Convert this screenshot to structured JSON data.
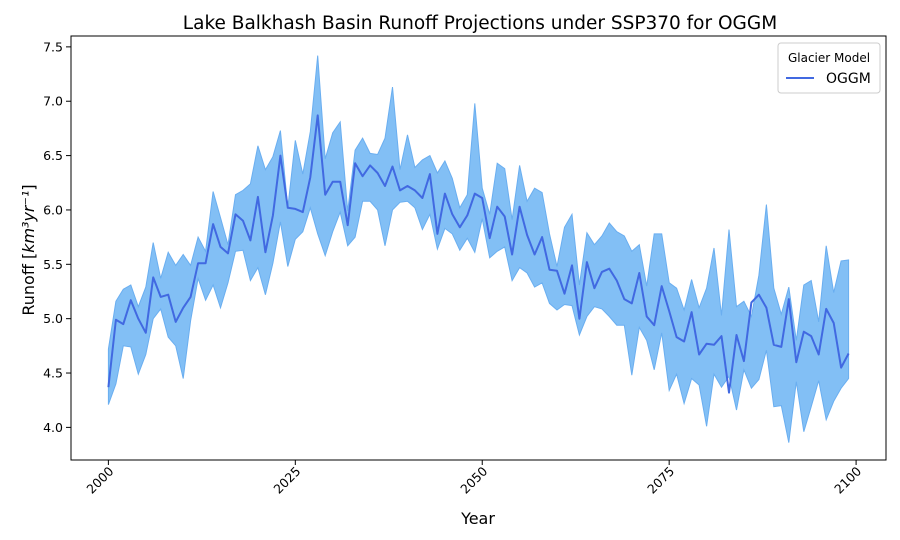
{
  "chart_data": {
    "type": "line",
    "title": "Lake Balkhash Basin Runoff Projections under SSP370 for OGGM",
    "xlabel": "Year",
    "ylabel": "Runoff [",
    "ylabel_unit": "km³yr⁻¹",
    "ylabel_suffix": "]",
    "xlim": [
      1995,
      2104
    ],
    "ylim": [
      3.7,
      7.6
    ],
    "xticks": [
      2000,
      2025,
      2050,
      2075,
      2100
    ],
    "xtick_labels": [
      "2000",
      "2025",
      "2050",
      "2075",
      "2100"
    ],
    "yticks": [
      4.0,
      4.5,
      5.0,
      5.5,
      6.0,
      6.5,
      7.0,
      7.5
    ],
    "ytick_labels": [
      "4.0",
      "4.5",
      "5.0",
      "5.5",
      "6.0",
      "6.5",
      "7.0",
      "7.5"
    ],
    "grid": false,
    "legend": {
      "title": "Glacier Model",
      "placement": "top-right",
      "entries": [
        "OGGM"
      ]
    },
    "colors": {
      "line": "#4169e1",
      "band": "#82bff5"
    },
    "x": [
      2000,
      2001,
      2002,
      2003,
      2004,
      2005,
      2006,
      2007,
      2008,
      2009,
      2010,
      2011,
      2012,
      2013,
      2014,
      2015,
      2016,
      2017,
      2018,
      2019,
      2020,
      2021,
      2022,
      2023,
      2024,
      2025,
      2026,
      2027,
      2028,
      2029,
      2030,
      2031,
      2032,
      2033,
      2034,
      2035,
      2036,
      2037,
      2038,
      2039,
      2040,
      2041,
      2042,
      2043,
      2044,
      2045,
      2046,
      2047,
      2048,
      2049,
      2050,
      2051,
      2052,
      2053,
      2054,
      2055,
      2056,
      2057,
      2058,
      2059,
      2060,
      2061,
      2062,
      2063,
      2064,
      2065,
      2066,
      2067,
      2068,
      2069,
      2070,
      2071,
      2072,
      2073,
      2074,
      2075,
      2076,
      2077,
      2078,
      2079,
      2080,
      2081,
      2082,
      2083,
      2084,
      2085,
      2086,
      2087,
      2088,
      2089,
      2090,
      2091,
      2092,
      2093,
      2094,
      2095,
      2096,
      2097,
      2098,
      2099
    ],
    "series": [
      {
        "name": "OGGM",
        "values": [
          4.37,
          4.99,
          4.95,
          5.17,
          5.0,
          4.87,
          5.38,
          5.2,
          5.22,
          4.97,
          5.1,
          5.2,
          5.51,
          5.51,
          5.87,
          5.66,
          5.6,
          5.96,
          5.9,
          5.72,
          6.12,
          5.61,
          5.95,
          6.5,
          6.02,
          6.01,
          5.98,
          6.3,
          6.87,
          6.14,
          6.26,
          6.26,
          5.86,
          6.43,
          6.31,
          6.41,
          6.34,
          6.22,
          6.4,
          6.18,
          6.22,
          6.18,
          6.11,
          6.33,
          5.78,
          6.15,
          5.96,
          5.84,
          5.95,
          6.15,
          6.11,
          5.74,
          6.03,
          5.94,
          5.59,
          6.03,
          5.77,
          5.59,
          5.75,
          5.45,
          5.44,
          5.23,
          5.49,
          5.0,
          5.52,
          5.28,
          5.43,
          5.46,
          5.35,
          5.18,
          5.14,
          5.42,
          5.02,
          4.94,
          5.3,
          5.07,
          4.83,
          4.79,
          5.06,
          4.67,
          4.77,
          4.76,
          4.84,
          4.32,
          4.85,
          4.61,
          5.15,
          5.22,
          5.1,
          4.76,
          4.74,
          5.18,
          4.6,
          4.88,
          4.84,
          4.67,
          5.09,
          4.96,
          4.55,
          4.68
        ]
      }
    ],
    "band": {
      "lower": [
        4.21,
        4.4,
        4.75,
        4.74,
        4.49,
        4.67,
        5.0,
        5.09,
        4.83,
        4.75,
        4.45,
        4.98,
        5.37,
        5.17,
        5.31,
        5.1,
        5.33,
        5.62,
        5.63,
        5.35,
        5.47,
        5.22,
        5.51,
        5.89,
        5.48,
        5.73,
        5.8,
        6.02,
        5.78,
        5.58,
        5.8,
        5.98,
        5.67,
        5.75,
        6.08,
        6.08,
        6.0,
        5.67,
        6.0,
        6.07,
        6.08,
        6.02,
        5.82,
        5.96,
        5.64,
        5.83,
        5.78,
        5.63,
        5.74,
        5.61,
        5.92,
        5.56,
        5.62,
        5.66,
        5.35,
        5.47,
        5.42,
        5.29,
        5.33,
        5.14,
        5.08,
        5.13,
        5.12,
        4.85,
        5.02,
        5.11,
        5.09,
        5.02,
        4.94,
        4.94,
        4.48,
        4.92,
        4.8,
        4.53,
        4.87,
        4.34,
        4.49,
        4.22,
        4.45,
        4.39,
        4.01,
        4.49,
        4.37,
        4.47,
        4.16,
        4.53,
        4.36,
        4.44,
        4.71,
        4.19,
        4.2,
        3.86,
        4.42,
        3.96,
        4.19,
        4.43,
        4.07,
        4.24,
        4.36,
        4.45
      ],
      "upper": [
        4.72,
        5.16,
        5.27,
        5.31,
        5.11,
        5.29,
        5.7,
        5.37,
        5.61,
        5.49,
        5.59,
        5.49,
        5.75,
        5.62,
        6.17,
        5.93,
        5.68,
        6.14,
        6.18,
        6.24,
        6.59,
        6.37,
        6.49,
        6.73,
        6.02,
        6.64,
        6.33,
        6.72,
        7.42,
        6.47,
        6.71,
        6.81,
        5.99,
        6.55,
        6.66,
        6.52,
        6.51,
        6.66,
        7.13,
        6.37,
        6.69,
        6.39,
        6.46,
        6.5,
        6.34,
        6.45,
        6.29,
        6.02,
        6.14,
        6.98,
        6.2,
        5.96,
        6.43,
        6.38,
        5.91,
        6.41,
        6.08,
        6.2,
        6.16,
        5.78,
        5.48,
        5.84,
        5.96,
        5.31,
        5.79,
        5.68,
        5.76,
        5.88,
        5.8,
        5.76,
        5.62,
        5.68,
        5.3,
        5.78,
        5.78,
        5.33,
        5.28,
        5.08,
        5.36,
        5.1,
        5.28,
        5.65,
        5.03,
        5.82,
        5.11,
        5.16,
        5.02,
        5.4,
        6.05,
        5.28,
        5.04,
        5.29,
        4.8,
        5.31,
        5.35,
        4.97,
        5.67,
        5.24,
        5.53,
        5.54
      ]
    }
  }
}
